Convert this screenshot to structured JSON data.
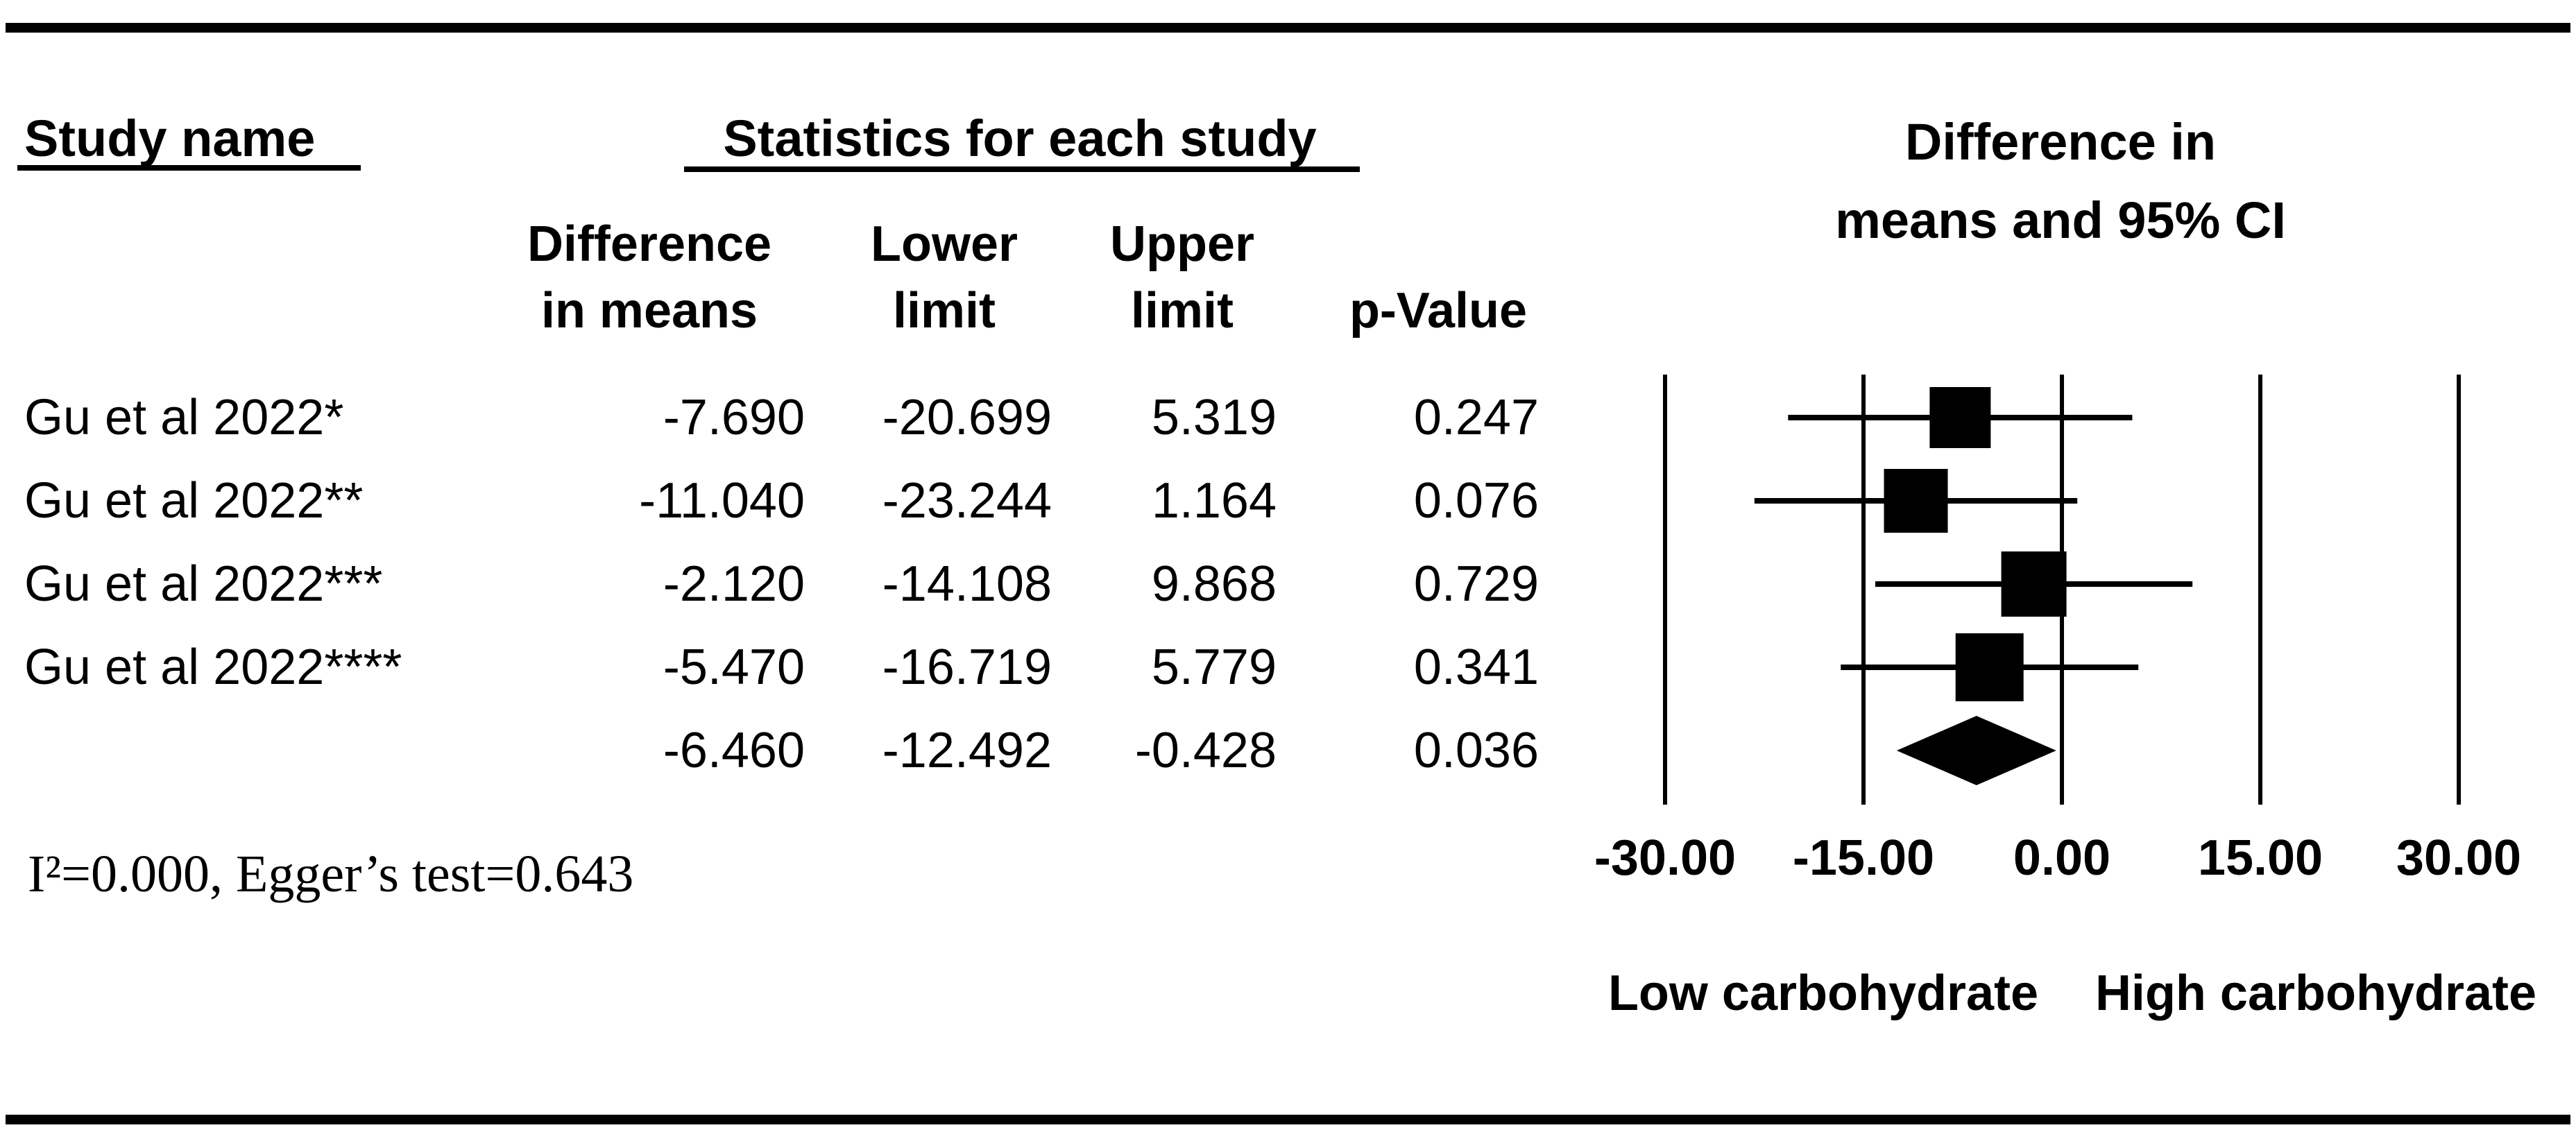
{
  "figure": {
    "headers": {
      "study_name": "Study name",
      "statistics": "Statistics for each study",
      "plot_line1": "Difference in",
      "plot_line2": "means and 95% CI",
      "col_diff_line1": "Difference",
      "col_diff_line2": "in means",
      "col_lower_line1": "Lower",
      "col_lower_line2": "limit",
      "col_upper_line1": "Upper",
      "col_upper_line2": "limit",
      "col_p": "p-Value"
    },
    "footnote": "I²=0.000, Egger’s test=0.643"
  },
  "table": {
    "rows": [
      {
        "name": "Gu et al 2022*",
        "mean": "-7.690",
        "lower": "-20.699",
        "upper": "5.319",
        "p": "0.247"
      },
      {
        "name": "Gu et al 2022**",
        "mean": "-11.040",
        "lower": "-23.244",
        "upper": "1.164",
        "p": "0.076"
      },
      {
        "name": "Gu et al 2022***",
        "mean": "-2.120",
        "lower": "-14.108",
        "upper": "9.868",
        "p": "0.729"
      },
      {
        "name": "Gu et al 2022****",
        "mean": "-5.470",
        "lower": "-16.719",
        "upper": "5.779",
        "p": "0.341"
      },
      {
        "name": "",
        "mean": "-6.460",
        "lower": "-12.492",
        "upper": "-0.428",
        "p": "0.036"
      }
    ]
  },
  "chart_data": {
    "type": "forest",
    "title": "Difference in means and 95% CI",
    "x_axis": {
      "min": -30,
      "max": 30,
      "ticks": [
        -30,
        -15,
        0,
        15,
        30
      ],
      "tick_labels": [
        "-30.00",
        "-15.00",
        "0.00",
        "15.00",
        "30.00"
      ],
      "grid": "vertical-lines"
    },
    "studies": [
      {
        "name": "Gu et al 2022*",
        "mean": -7.69,
        "lower": -20.699,
        "upper": 5.319,
        "p": 0.247
      },
      {
        "name": "Gu et al 2022**",
        "mean": -11.04,
        "lower": -23.244,
        "upper": 1.164,
        "p": 0.076
      },
      {
        "name": "Gu et al 2022***",
        "mean": -2.12,
        "lower": -14.108,
        "upper": 9.868,
        "p": 0.729
      },
      {
        "name": "Gu et al 2022****",
        "mean": -5.47,
        "lower": -16.719,
        "upper": 5.779,
        "p": 0.341
      }
    ],
    "summary": {
      "marker": "diamond",
      "mean": -6.46,
      "lower": -12.492,
      "upper": -0.428,
      "p": 0.036
    },
    "heterogeneity": {
      "I2": 0.0,
      "eggers_test": 0.643
    },
    "group_labels": {
      "negative_side": "Low carbohydrate",
      "positive_side": "High carbohydrate"
    },
    "colors": {
      "foreground": "#000000",
      "background": "#ffffff"
    }
  }
}
